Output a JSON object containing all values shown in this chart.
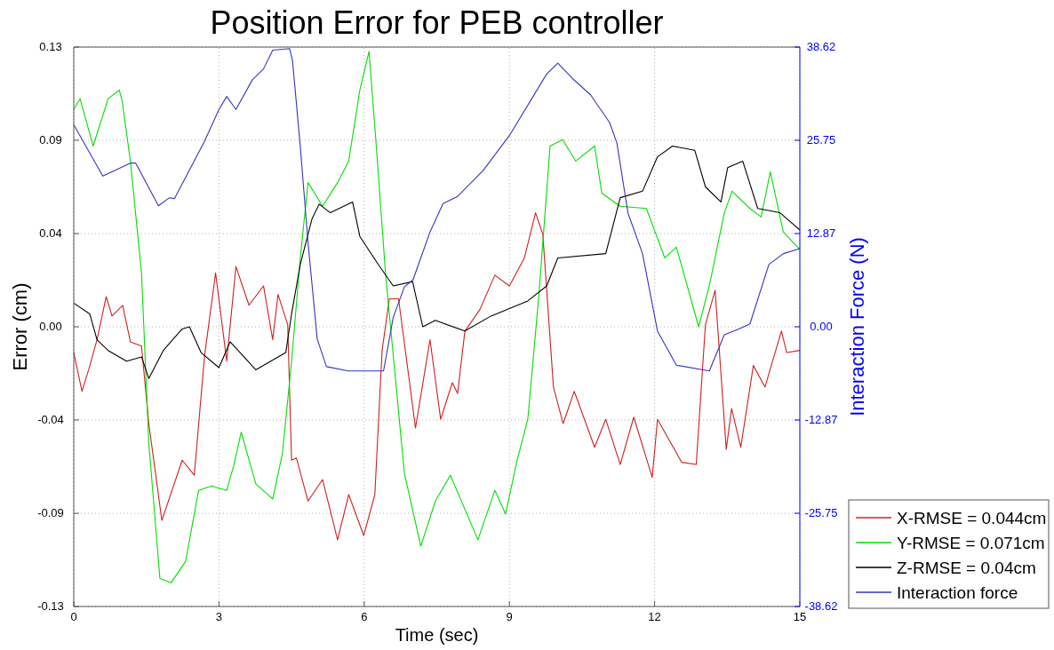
{
  "chart_data": {
    "type": "line",
    "title": "Position Error for PEB controller",
    "xlabel": "Time (sec)",
    "ylabel": "Error (cm)",
    "y2label": "Interaction Force (N)",
    "xlim": [
      0,
      15
    ],
    "xticks": [
      0,
      3,
      6,
      9,
      12,
      15
    ],
    "ylim": [
      -0.13,
      0.13
    ],
    "yticks": [
      -0.13,
      {
        "value": -0.0867,
        "label": "-0.09"
      },
      {
        "value": -0.0433,
        "label": "-0.04"
      },
      {
        "value": 0,
        "label": "0.00"
      },
      {
        "value": 0.0433,
        "label": "0.04"
      },
      {
        "value": 0.0867,
        "label": "0.09"
      },
      0.13
    ],
    "y2lim": [
      -38.62,
      38.62
    ],
    "y2ticks": [
      -38.62,
      -25.75,
      -12.87,
      {
        "value": 0,
        "label": "0.00"
      },
      12.87,
      25.75,
      38.62
    ],
    "grid": true,
    "legend": "bottom right",
    "line_style": "solid",
    "marker": "none",
    "series": [
      {
        "name": "X-RMSE = 0.044cm",
        "color": "#d02020",
        "x": [
          0,
          0.17,
          0.32,
          0.48,
          0.67,
          0.79,
          1.01,
          1.17,
          1.4,
          1.55,
          1.82,
          2.24,
          2.49,
          2.7,
          2.93,
          3.16,
          3.35,
          3.62,
          3.92,
          4.11,
          4.22,
          4.42,
          4.5,
          4.6,
          4.84,
          5.14,
          5.45,
          5.68,
          5.99,
          6.22,
          6.37,
          6.52,
          6.71,
          7.06,
          7.36,
          7.58,
          7.82,
          7.93,
          8.08,
          8.39,
          8.7,
          9.0,
          9.31,
          9.54,
          9.69,
          9.91,
          10.11,
          10.34,
          10.76,
          10.99,
          11.29,
          11.57,
          11.95,
          12.06,
          12.56,
          12.86,
          13.05,
          13.25,
          13.48,
          13.59,
          13.78,
          14.04,
          14.28,
          14.62,
          14.73,
          15
        ],
        "values": [
          -0.012,
          -0.03,
          -0.019,
          -0.006,
          0.014,
          0.005,
          0.01,
          -0.007,
          -0.009,
          -0.045,
          -0.09,
          -0.062,
          -0.069,
          -0.014,
          0.025,
          -0.016,
          0.028,
          0.01,
          0.019,
          -0.006,
          0.015,
          0.001,
          -0.062,
          -0.061,
          -0.081,
          -0.071,
          -0.099,
          -0.078,
          -0.097,
          -0.078,
          -0.011,
          0.013,
          0.013,
          -0.047,
          -0.006,
          -0.043,
          -0.026,
          -0.031,
          -0.002,
          0.008,
          0.024,
          0.019,
          0.032,
          0.053,
          0.043,
          -0.028,
          -0.045,
          -0.03,
          -0.056,
          -0.043,
          -0.064,
          -0.042,
          -0.07,
          -0.043,
          -0.063,
          -0.064,
          0.001,
          0.017,
          -0.057,
          -0.038,
          -0.056,
          -0.018,
          -0.028,
          -0.002,
          -0.012,
          -0.011
        ]
      },
      {
        "name": "Y-RMSE = 0.071cm",
        "color": "#00e000",
        "x": [
          0,
          0.13,
          0.4,
          0.71,
          0.94,
          1.0,
          1.17,
          1.4,
          1.55,
          1.78,
          2.01,
          2.31,
          2.58,
          2.85,
          3.16,
          3.31,
          3.46,
          3.76,
          4.11,
          4.31,
          4.5,
          4.68,
          4.84,
          5.14,
          5.45,
          5.68,
          5.91,
          6.1,
          6.25,
          6.44,
          6.83,
          7.17,
          7.47,
          7.78,
          8.35,
          8.7,
          8.92,
          9.16,
          9.38,
          9.61,
          9.84,
          10.1,
          10.37,
          10.76,
          10.91,
          11.29,
          11.83,
          12.21,
          12.45,
          12.91,
          13.13,
          13.44,
          13.6,
          13.97,
          14.2,
          14.39,
          14.66,
          15
        ],
        "values": [
          0.101,
          0.106,
          0.084,
          0.106,
          0.11,
          0.105,
          0.077,
          0.025,
          -0.054,
          -0.117,
          -0.119,
          -0.109,
          -0.076,
          -0.074,
          -0.076,
          -0.064,
          -0.049,
          -0.073,
          -0.08,
          -0.059,
          -0.016,
          0.032,
          0.067,
          0.056,
          0.067,
          0.077,
          0.11,
          0.128,
          0.084,
          0.025,
          -0.068,
          -0.102,
          -0.081,
          -0.069,
          -0.099,
          -0.076,
          -0.087,
          -0.062,
          -0.043,
          0.015,
          0.084,
          0.087,
          0.077,
          0.084,
          0.062,
          0.056,
          0.055,
          0.032,
          0.037,
          0,
          0.019,
          0.053,
          0.063,
          0.055,
          0.051,
          0.072,
          0.044,
          0.036
        ]
      },
      {
        "name": "Z-RMSE = 0.04cm",
        "color": "#000000",
        "x": [
          0,
          0.33,
          0.48,
          0.71,
          1.09,
          1.4,
          1.55,
          1.85,
          2.24,
          2.39,
          2.63,
          3.0,
          3.23,
          3.76,
          4.38,
          4.5,
          4.68,
          4.92,
          5.07,
          5.3,
          5.76,
          5.91,
          6.29,
          6.6,
          7.0,
          7.21,
          7.47,
          8.08,
          8.62,
          9.38,
          9.77,
          10.0,
          10.99,
          11.29,
          11.75,
          12.06,
          12.37,
          12.83,
          13.05,
          13.37,
          13.51,
          13.82,
          14.13,
          14.59,
          15
        ],
        "values": [
          0.011,
          0.006,
          -0.006,
          -0.011,
          -0.016,
          -0.014,
          -0.024,
          -0.011,
          -0.001,
          0,
          -0.012,
          -0.019,
          -0.007,
          -0.02,
          -0.012,
          0.006,
          0.029,
          0.05,
          0.057,
          0.053,
          0.058,
          0.042,
          0.029,
          0.019,
          0.021,
          0,
          0.003,
          -0.002,
          0.005,
          0.012,
          0.019,
          0.032,
          0.034,
          0.06,
          0.063,
          0.079,
          0.084,
          0.082,
          0.065,
          0.058,
          0.074,
          0.077,
          0.055,
          0.053,
          0.045
        ]
      },
      {
        "name": "Interaction force",
        "color": "#3535c0",
        "axis": "y2",
        "x": [
          0,
          0.6,
          1.17,
          1.28,
          1.75,
          1.97,
          2.08,
          2.7,
          3.0,
          3.16,
          3.35,
          3.69,
          3.92,
          4.11,
          4.46,
          4.52,
          4.68,
          4.84,
          5.03,
          5.22,
          5.67,
          6.4,
          6.6,
          6.83,
          7.01,
          7.36,
          7.63,
          7.93,
          8.46,
          9.0,
          9.77,
          10.0,
          10.3,
          10.68,
          11.07,
          11.22,
          11.45,
          11.75,
          12.06,
          12.45,
          13.13,
          13.44,
          13.74,
          13.97,
          14.36,
          14.66,
          15
        ],
        "values": [
          27.9,
          20.8,
          22.6,
          22.6,
          16.7,
          17.8,
          17.7,
          25.6,
          30.0,
          31.8,
          30.0,
          34.1,
          35.6,
          38.2,
          38.4,
          36.7,
          24.9,
          11.6,
          -1.7,
          -5.5,
          -6.1,
          -6.1,
          1.3,
          5.5,
          6.5,
          13.1,
          17.0,
          18.0,
          21.6,
          26.4,
          34.9,
          36.4,
          34.3,
          32.0,
          28.2,
          25.4,
          15.7,
          10.1,
          -0.6,
          -5.3,
          -6.1,
          -1.1,
          -0.3,
          0.4,
          8.6,
          10.1,
          10.8
        ]
      }
    ]
  }
}
